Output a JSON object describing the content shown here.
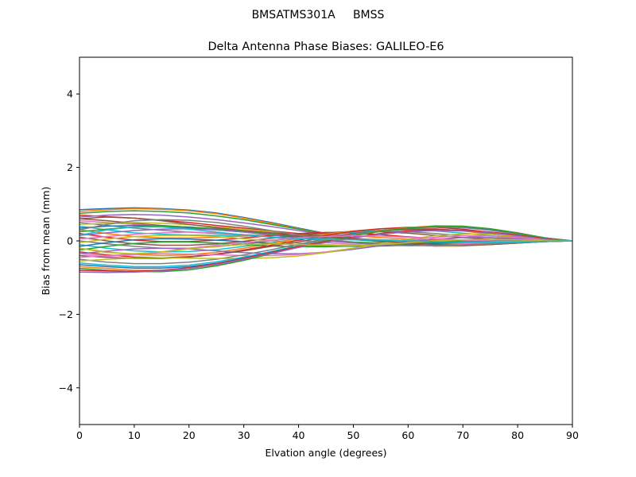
{
  "chart_data": {
    "type": "line",
    "suptitle": "BMSATMS301A     BMSS",
    "title": "Delta Antenna Phase Biases: GALILEO-E6",
    "xlabel": "Elvation angle (degrees)",
    "ylabel": "Bias from mean (mm)",
    "xlim": [
      0,
      90
    ],
    "ylim": [
      -5,
      5
    ],
    "xticks": [
      0,
      10,
      20,
      30,
      40,
      50,
      60,
      70,
      80,
      90
    ],
    "yticks": [
      -4,
      -2,
      0,
      2,
      4
    ],
    "ytick_labels": [
      "−4",
      "−2",
      "0",
      "2",
      "4"
    ],
    "grid": false,
    "legend": "none",
    "x": [
      0,
      5,
      10,
      15,
      20,
      25,
      30,
      35,
      40,
      45,
      50,
      55,
      60,
      65,
      70,
      75,
      80,
      85,
      90
    ],
    "series_colors": [
      "#1f77b4",
      "#ff7f0e",
      "#2ca02c",
      "#d62728",
      "#9467bd",
      "#8c564b",
      "#e377c2",
      "#7f7f7f",
      "#bcbd22",
      "#17becf"
    ],
    "series": [
      {
        "values": [
          0.85,
          0.88,
          0.9,
          0.88,
          0.84,
          0.76,
          0.64,
          0.5,
          0.35,
          0.2,
          0.08,
          -0.02,
          -0.1,
          -0.14,
          -0.13,
          -0.1,
          -0.06,
          -0.02,
          0.0
        ]
      },
      {
        "values": [
          0.8,
          0.85,
          0.88,
          0.86,
          0.82,
          0.74,
          0.62,
          0.48,
          0.33,
          0.19,
          0.07,
          -0.03,
          -0.1,
          -0.14,
          -0.14,
          -0.1,
          -0.06,
          -0.02,
          0.0
        ]
      },
      {
        "values": [
          0.75,
          0.8,
          0.82,
          0.8,
          0.76,
          0.68,
          0.58,
          0.45,
          0.32,
          0.19,
          0.08,
          -0.02,
          -0.09,
          -0.12,
          -0.12,
          -0.09,
          -0.05,
          -0.02,
          0.0
        ]
      },
      {
        "values": [
          0.7,
          0.66,
          0.62,
          0.56,
          0.5,
          0.42,
          0.35,
          0.27,
          0.2,
          0.13,
          0.06,
          0.0,
          -0.05,
          -0.08,
          -0.09,
          -0.07,
          -0.04,
          -0.01,
          0.0
        ]
      },
      {
        "values": [
          0.65,
          0.7,
          0.72,
          0.7,
          0.65,
          0.58,
          0.49,
          0.39,
          0.28,
          0.17,
          0.07,
          -0.01,
          -0.07,
          -0.1,
          -0.1,
          -0.08,
          -0.05,
          -0.02,
          0.0
        ]
      },
      {
        "values": [
          0.6,
          0.55,
          0.48,
          0.42,
          0.37,
          0.31,
          0.25,
          0.19,
          0.14,
          0.09,
          0.04,
          0.0,
          -0.03,
          -0.05,
          -0.06,
          -0.05,
          -0.03,
          -0.01,
          0.0
        ]
      },
      {
        "values": [
          0.55,
          0.5,
          0.45,
          0.4,
          0.35,
          0.3,
          0.25,
          0.2,
          0.15,
          0.1,
          0.06,
          0.02,
          -0.01,
          -0.03,
          -0.04,
          -0.03,
          -0.02,
          -0.01,
          0.0
        ]
      },
      {
        "values": [
          0.5,
          0.42,
          0.35,
          0.29,
          0.24,
          0.2,
          0.17,
          0.14,
          0.12,
          0.09,
          0.06,
          0.03,
          0.01,
          -0.01,
          -0.02,
          -0.02,
          -0.01,
          0.0,
          0.0
        ]
      },
      {
        "values": [
          0.45,
          0.48,
          0.5,
          0.48,
          0.44,
          0.38,
          0.32,
          0.25,
          0.18,
          0.11,
          0.05,
          0.0,
          -0.04,
          -0.07,
          -0.07,
          -0.06,
          -0.04,
          -0.01,
          0.0
        ]
      },
      {
        "values": [
          0.4,
          0.3,
          0.22,
          0.18,
          0.16,
          0.15,
          0.15,
          0.14,
          0.12,
          0.09,
          0.05,
          0.02,
          0.0,
          -0.01,
          -0.02,
          -0.01,
          -0.01,
          0.0,
          0.0
        ]
      },
      {
        "values": [
          0.35,
          0.4,
          0.42,
          0.4,
          0.36,
          0.3,
          0.24,
          0.18,
          0.12,
          0.07,
          0.03,
          -0.01,
          -0.03,
          -0.05,
          -0.05,
          -0.04,
          -0.03,
          -0.01,
          0.0
        ]
      },
      {
        "values": [
          0.3,
          0.2,
          0.12,
          0.08,
          0.08,
          0.1,
          0.13,
          0.16,
          0.18,
          0.17,
          0.14,
          0.09,
          0.05,
          0.02,
          0.0,
          -0.01,
          -0.01,
          0.0,
          0.0
        ]
      },
      {
        "values": [
          0.25,
          0.32,
          0.38,
          0.4,
          0.38,
          0.33,
          0.26,
          0.18,
          0.1,
          0.03,
          -0.03,
          -0.06,
          -0.08,
          -0.08,
          -0.07,
          -0.05,
          -0.03,
          -0.01,
          0.0
        ]
      },
      {
        "values": [
          0.2,
          0.1,
          0.02,
          -0.02,
          -0.02,
          0.02,
          0.08,
          0.14,
          0.2,
          0.23,
          0.22,
          0.17,
          0.11,
          0.06,
          0.02,
          0.0,
          -0.01,
          -0.01,
          0.0
        ]
      },
      {
        "values": [
          0.15,
          0.22,
          0.28,
          0.32,
          0.33,
          0.3,
          0.24,
          0.16,
          0.08,
          0.0,
          -0.06,
          -0.1,
          -0.11,
          -0.1,
          -0.08,
          -0.05,
          -0.03,
          -0.01,
          0.0
        ]
      },
      {
        "values": [
          0.1,
          0.0,
          -0.08,
          -0.12,
          -0.12,
          -0.08,
          -0.01,
          0.07,
          0.15,
          0.22,
          0.26,
          0.25,
          0.21,
          0.15,
          0.09,
          0.04,
          0.01,
          0.0,
          0.0
        ]
      },
      {
        "values": [
          0.05,
          0.12,
          0.18,
          0.22,
          0.24,
          0.22,
          0.17,
          0.1,
          0.02,
          -0.05,
          -0.1,
          -0.13,
          -0.13,
          -0.11,
          -0.08,
          -0.05,
          -0.03,
          -0.01,
          0.0
        ]
      },
      {
        "values": [
          0.0,
          -0.08,
          -0.15,
          -0.2,
          -0.2,
          -0.16,
          -0.09,
          0.0,
          0.09,
          0.17,
          0.23,
          0.26,
          0.25,
          0.2,
          0.14,
          0.08,
          0.04,
          0.01,
          0.0
        ]
      },
      {
        "values": [
          -0.05,
          0.05,
          0.12,
          0.15,
          0.15,
          0.12,
          0.06,
          0.0,
          -0.06,
          -0.1,
          -0.13,
          -0.13,
          -0.11,
          -0.08,
          -0.05,
          -0.03,
          -0.02,
          -0.01,
          0.0
        ]
      },
      {
        "values": [
          -0.1,
          -0.2,
          -0.27,
          -0.3,
          -0.29,
          -0.24,
          -0.15,
          -0.05,
          0.06,
          0.16,
          0.24,
          0.29,
          0.3,
          0.27,
          0.21,
          0.14,
          0.07,
          0.02,
          0.0
        ]
      },
      {
        "values": [
          -0.15,
          -0.05,
          0.03,
          0.06,
          0.05,
          0.02,
          -0.02,
          -0.07,
          -0.11,
          -0.14,
          -0.15,
          -0.14,
          -0.11,
          -0.07,
          -0.04,
          -0.02,
          -0.01,
          0.0,
          0.0
        ]
      },
      {
        "values": [
          -0.2,
          -0.3,
          -0.37,
          -0.4,
          -0.38,
          -0.31,
          -0.2,
          -0.07,
          0.06,
          0.18,
          0.27,
          0.33,
          0.35,
          0.33,
          0.27,
          0.18,
          0.1,
          0.03,
          0.0
        ]
      },
      {
        "values": [
          -0.25,
          -0.15,
          -0.07,
          -0.03,
          -0.03,
          -0.06,
          -0.1,
          -0.14,
          -0.16,
          -0.16,
          -0.14,
          -0.11,
          -0.07,
          -0.03,
          0.0,
          0.01,
          0.01,
          0.0,
          0.0
        ]
      },
      {
        "values": [
          -0.3,
          -0.38,
          -0.44,
          -0.46,
          -0.43,
          -0.36,
          -0.25,
          -0.12,
          0.02,
          0.15,
          0.26,
          0.33,
          0.37,
          0.37,
          0.32,
          0.23,
          0.13,
          0.05,
          0.0
        ]
      },
      {
        "values": [
          -0.35,
          -0.28,
          -0.22,
          -0.2,
          -0.22,
          -0.27,
          -0.32,
          -0.35,
          -0.35,
          -0.31,
          -0.23,
          -0.13,
          -0.03,
          0.05,
          0.09,
          0.09,
          0.06,
          0.02,
          0.0
        ]
      },
      {
        "values": [
          -0.4,
          -0.45,
          -0.48,
          -0.48,
          -0.44,
          -0.37,
          -0.27,
          -0.15,
          -0.03,
          0.1,
          0.2,
          0.28,
          0.32,
          0.32,
          0.28,
          0.21,
          0.12,
          0.04,
          0.0
        ]
      },
      {
        "values": [
          -0.45,
          -0.4,
          -0.36,
          -0.35,
          -0.36,
          -0.38,
          -0.4,
          -0.4,
          -0.37,
          -0.3,
          -0.2,
          -0.09,
          0.02,
          0.1,
          0.14,
          0.13,
          0.09,
          0.03,
          0.0
        ]
      },
      {
        "values": [
          -0.5,
          -0.58,
          -0.62,
          -0.62,
          -0.58,
          -0.5,
          -0.38,
          -0.24,
          -0.09,
          0.06,
          0.18,
          0.28,
          0.35,
          0.38,
          0.36,
          0.29,
          0.18,
          0.07,
          0.0
        ]
      },
      {
        "values": [
          -0.55,
          -0.5,
          -0.47,
          -0.46,
          -0.47,
          -0.48,
          -0.48,
          -0.46,
          -0.41,
          -0.32,
          -0.2,
          -0.07,
          0.05,
          0.14,
          0.19,
          0.18,
          0.13,
          0.05,
          0.0
        ]
      },
      {
        "values": [
          -0.6,
          -0.66,
          -0.7,
          -0.7,
          -0.66,
          -0.57,
          -0.44,
          -0.29,
          -0.13,
          0.03,
          0.17,
          0.28,
          0.36,
          0.4,
          0.39,
          0.32,
          0.21,
          0.08,
          0.0
        ]
      },
      {
        "values": [
          -0.65,
          -0.7,
          -0.74,
          -0.74,
          -0.7,
          -0.61,
          -0.47,
          -0.31,
          -0.14,
          0.02,
          0.16,
          0.28,
          0.36,
          0.4,
          0.39,
          0.32,
          0.21,
          0.08,
          0.0
        ]
      },
      {
        "values": [
          -0.7,
          -0.75,
          -0.8,
          -0.8,
          -0.75,
          -0.65,
          -0.5,
          -0.33,
          -0.15,
          0.01,
          0.15,
          0.27,
          0.36,
          0.41,
          0.4,
          0.33,
          0.22,
          0.08,
          0.0
        ]
      },
      {
        "values": [
          -0.75,
          -0.8,
          -0.84,
          -0.84,
          -0.79,
          -0.68,
          -0.53,
          -0.35,
          -0.17,
          0.0,
          0.14,
          0.26,
          0.35,
          0.4,
          0.4,
          0.33,
          0.22,
          0.08,
          0.0
        ]
      },
      {
        "values": [
          -0.8,
          -0.82,
          -0.83,
          -0.8,
          -0.73,
          -0.62,
          -0.48,
          -0.32,
          -0.16,
          -0.02,
          0.1,
          0.2,
          0.27,
          0.3,
          0.29,
          0.24,
          0.16,
          0.06,
          0.0
        ]
      },
      {
        "values": [
          -0.85,
          -0.86,
          -0.85,
          -0.82,
          -0.75,
          -0.64,
          -0.5,
          -0.34,
          -0.18,
          -0.04,
          0.08,
          0.18,
          0.25,
          0.28,
          0.27,
          0.22,
          0.14,
          0.05,
          0.0
        ]
      },
      {
        "values": [
          0.6,
          0.65,
          0.62,
          0.55,
          0.45,
          0.36,
          0.28,
          0.22,
          0.17,
          0.12,
          0.06,
          0.0,
          -0.06,
          -0.1,
          -0.12,
          -0.1,
          -0.06,
          -0.02,
          0.0
        ]
      },
      {
        "values": [
          -0.35,
          -0.42,
          -0.38,
          -0.3,
          -0.2,
          -0.12,
          -0.05,
          0.02,
          0.08,
          0.12,
          0.14,
          0.13,
          0.1,
          0.06,
          0.02,
          0.0,
          -0.01,
          0.0,
          0.0
        ]
      },
      {
        "values": [
          0.3,
          0.45,
          0.55,
          0.58,
          0.56,
          0.5,
          0.4,
          0.28,
          0.16,
          0.05,
          -0.04,
          -0.1,
          -0.13,
          -0.13,
          -0.11,
          -0.08,
          -0.05,
          -0.02,
          0.0
        ]
      },
      {
        "values": [
          -0.2,
          -0.32,
          -0.35,
          -0.3,
          -0.22,
          -0.15,
          -0.1,
          -0.08,
          -0.1,
          -0.12,
          -0.13,
          -0.1,
          -0.05,
          0.0,
          0.03,
          0.04,
          0.03,
          0.01,
          0.0
        ]
      },
      {
        "values": [
          0.15,
          0.3,
          0.38,
          0.38,
          0.32,
          0.24,
          0.16,
          0.1,
          0.06,
          0.04,
          0.03,
          0.02,
          0.0,
          -0.02,
          -0.04,
          -0.04,
          -0.03,
          -0.01,
          0.0
        ]
      }
    ]
  }
}
